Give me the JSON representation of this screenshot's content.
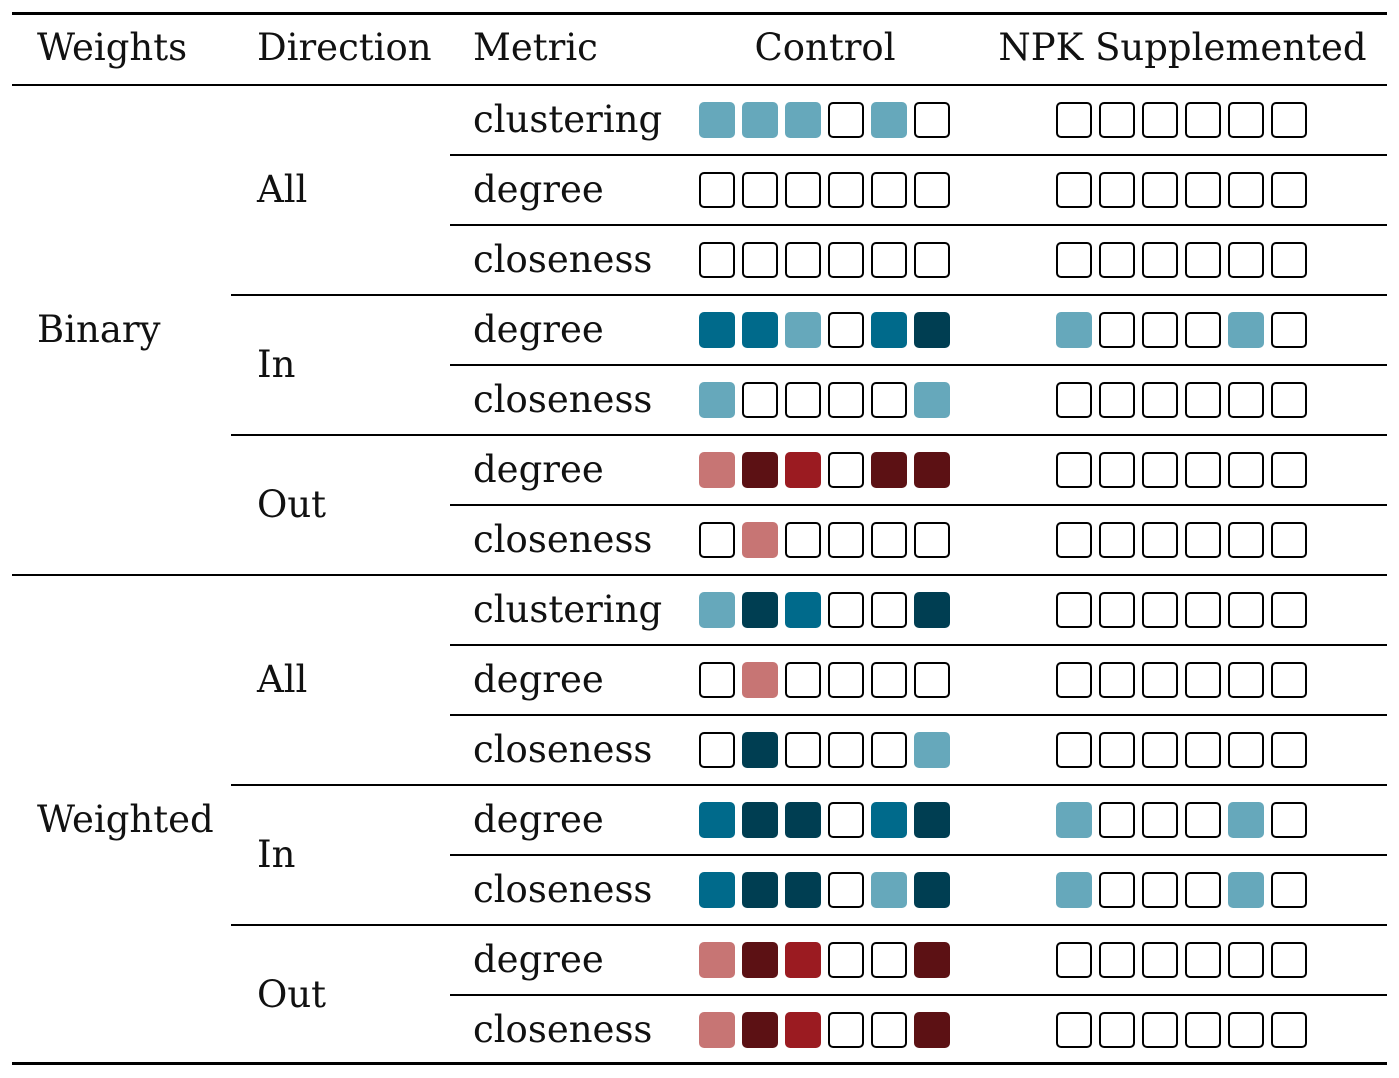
{
  "headers": {
    "weights": "Weights",
    "direction": "Direction",
    "metric": "Metric",
    "control": "Control",
    "npk": "NPK Supplemented"
  },
  "colors": {
    "empty": "#ffffff",
    "light_blue": "#66a8bb",
    "mid_blue": "#006a8b",
    "dark_blue": "#003e52",
    "light_red": "#c77574",
    "mid_red": "#9b1b21",
    "dark_red": "#5c1114"
  },
  "groups": [
    {
      "weights": "Binary",
      "directions": [
        {
          "direction": "All",
          "rows": [
            {
              "metric": "clustering",
              "control": [
                "light_blue",
                "light_blue",
                "light_blue",
                "empty",
                "light_blue",
                "empty"
              ],
              "npk": [
                "empty",
                "empty",
                "empty",
                "empty",
                "empty",
                "empty"
              ]
            },
            {
              "metric": "degree",
              "control": [
                "empty",
                "empty",
                "empty",
                "empty",
                "empty",
                "empty"
              ],
              "npk": [
                "empty",
                "empty",
                "empty",
                "empty",
                "empty",
                "empty"
              ]
            },
            {
              "metric": "closeness",
              "control": [
                "empty",
                "empty",
                "empty",
                "empty",
                "empty",
                "empty"
              ],
              "npk": [
                "empty",
                "empty",
                "empty",
                "empty",
                "empty",
                "empty"
              ]
            }
          ]
        },
        {
          "direction": "In",
          "rows": [
            {
              "metric": "degree",
              "control": [
                "mid_blue",
                "mid_blue",
                "light_blue",
                "empty",
                "mid_blue",
                "dark_blue"
              ],
              "npk": [
                "light_blue",
                "empty",
                "empty",
                "empty",
                "light_blue",
                "empty"
              ]
            },
            {
              "metric": "closeness",
              "control": [
                "light_blue",
                "empty",
                "empty",
                "empty",
                "empty",
                "light_blue"
              ],
              "npk": [
                "empty",
                "empty",
                "empty",
                "empty",
                "empty",
                "empty"
              ]
            }
          ]
        },
        {
          "direction": "Out",
          "rows": [
            {
              "metric": "degree",
              "control": [
                "light_red",
                "dark_red",
                "mid_red",
                "empty",
                "dark_red",
                "dark_red"
              ],
              "npk": [
                "empty",
                "empty",
                "empty",
                "empty",
                "empty",
                "empty"
              ]
            },
            {
              "metric": "closeness",
              "control": [
                "empty",
                "light_red",
                "empty",
                "empty",
                "empty",
                "empty"
              ],
              "npk": [
                "empty",
                "empty",
                "empty",
                "empty",
                "empty",
                "empty"
              ]
            }
          ]
        }
      ]
    },
    {
      "weights": "Weighted",
      "directions": [
        {
          "direction": "All",
          "rows": [
            {
              "metric": "clustering",
              "control": [
                "light_blue",
                "dark_blue",
                "mid_blue",
                "empty",
                "empty",
                "dark_blue"
              ],
              "npk": [
                "empty",
                "empty",
                "empty",
                "empty",
                "empty",
                "empty"
              ]
            },
            {
              "metric": "degree",
              "control": [
                "empty",
                "light_red",
                "empty",
                "empty",
                "empty",
                "empty"
              ],
              "npk": [
                "empty",
                "empty",
                "empty",
                "empty",
                "empty",
                "empty"
              ]
            },
            {
              "metric": "closeness",
              "control": [
                "empty",
                "dark_blue",
                "empty",
                "empty",
                "empty",
                "light_blue"
              ],
              "npk": [
                "empty",
                "empty",
                "empty",
                "empty",
                "empty",
                "empty"
              ]
            }
          ]
        },
        {
          "direction": "In",
          "rows": [
            {
              "metric": "degree",
              "control": [
                "mid_blue",
                "dark_blue",
                "dark_blue",
                "empty",
                "mid_blue",
                "dark_blue"
              ],
              "npk": [
                "light_blue",
                "empty",
                "empty",
                "empty",
                "light_blue",
                "empty"
              ]
            },
            {
              "metric": "closeness",
              "control": [
                "mid_blue",
                "dark_blue",
                "dark_blue",
                "empty",
                "light_blue",
                "dark_blue"
              ],
              "npk": [
                "light_blue",
                "empty",
                "empty",
                "empty",
                "light_blue",
                "empty"
              ]
            }
          ]
        },
        {
          "direction": "Out",
          "rows": [
            {
              "metric": "degree",
              "control": [
                "light_red",
                "dark_red",
                "mid_red",
                "empty",
                "empty",
                "dark_red"
              ],
              "npk": [
                "empty",
                "empty",
                "empty",
                "empty",
                "empty",
                "empty"
              ]
            },
            {
              "metric": "closeness",
              "control": [
                "light_red",
                "dark_red",
                "mid_red",
                "empty",
                "empty",
                "dark_red"
              ],
              "npk": [
                "empty",
                "empty",
                "empty",
                "empty",
                "empty",
                "empty"
              ]
            }
          ]
        }
      ]
    }
  ]
}
